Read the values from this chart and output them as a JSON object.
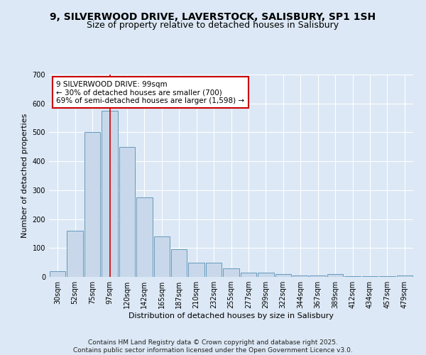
{
  "title": "9, SILVERWOOD DRIVE, LAVERSTOCK, SALISBURY, SP1 1SH",
  "subtitle": "Size of property relative to detached houses in Salisbury",
  "xlabel": "Distribution of detached houses by size in Salisbury",
  "ylabel": "Number of detached properties",
  "categories": [
    "30sqm",
    "52sqm",
    "75sqm",
    "97sqm",
    "120sqm",
    "142sqm",
    "165sqm",
    "187sqm",
    "210sqm",
    "232sqm",
    "255sqm",
    "277sqm",
    "299sqm",
    "322sqm",
    "344sqm",
    "367sqm",
    "389sqm",
    "412sqm",
    "434sqm",
    "457sqm",
    "479sqm"
  ],
  "bar_heights": [
    20,
    160,
    500,
    575,
    450,
    275,
    140,
    95,
    50,
    50,
    30,
    15,
    15,
    10,
    5,
    5,
    10,
    3,
    3,
    3,
    5
  ],
  "bar_color": "#c8d8ea",
  "bar_edge_color": "#6699bb",
  "highlight_index": 3,
  "highlight_line_color": "#cc0000",
  "ylim": [
    0,
    700
  ],
  "yticks": [
    0,
    100,
    200,
    300,
    400,
    500,
    600,
    700
  ],
  "annotation_text": "9 SILVERWOOD DRIVE: 99sqm\n← 30% of detached houses are smaller (700)\n69% of semi-detached houses are larger (1,598) →",
  "annotation_box_color": "#ffffff",
  "annotation_box_edge": "#cc0000",
  "footer_text": "Contains HM Land Registry data © Crown copyright and database right 2025.\nContains public sector information licensed under the Open Government Licence v3.0.",
  "bg_color": "#dce8f5",
  "plot_bg_color": "#dce8f5",
  "title_fontsize": 10,
  "subtitle_fontsize": 9,
  "axis_fontsize": 8,
  "tick_fontsize": 7,
  "footer_fontsize": 6.5,
  "ann_fontsize": 7.5
}
